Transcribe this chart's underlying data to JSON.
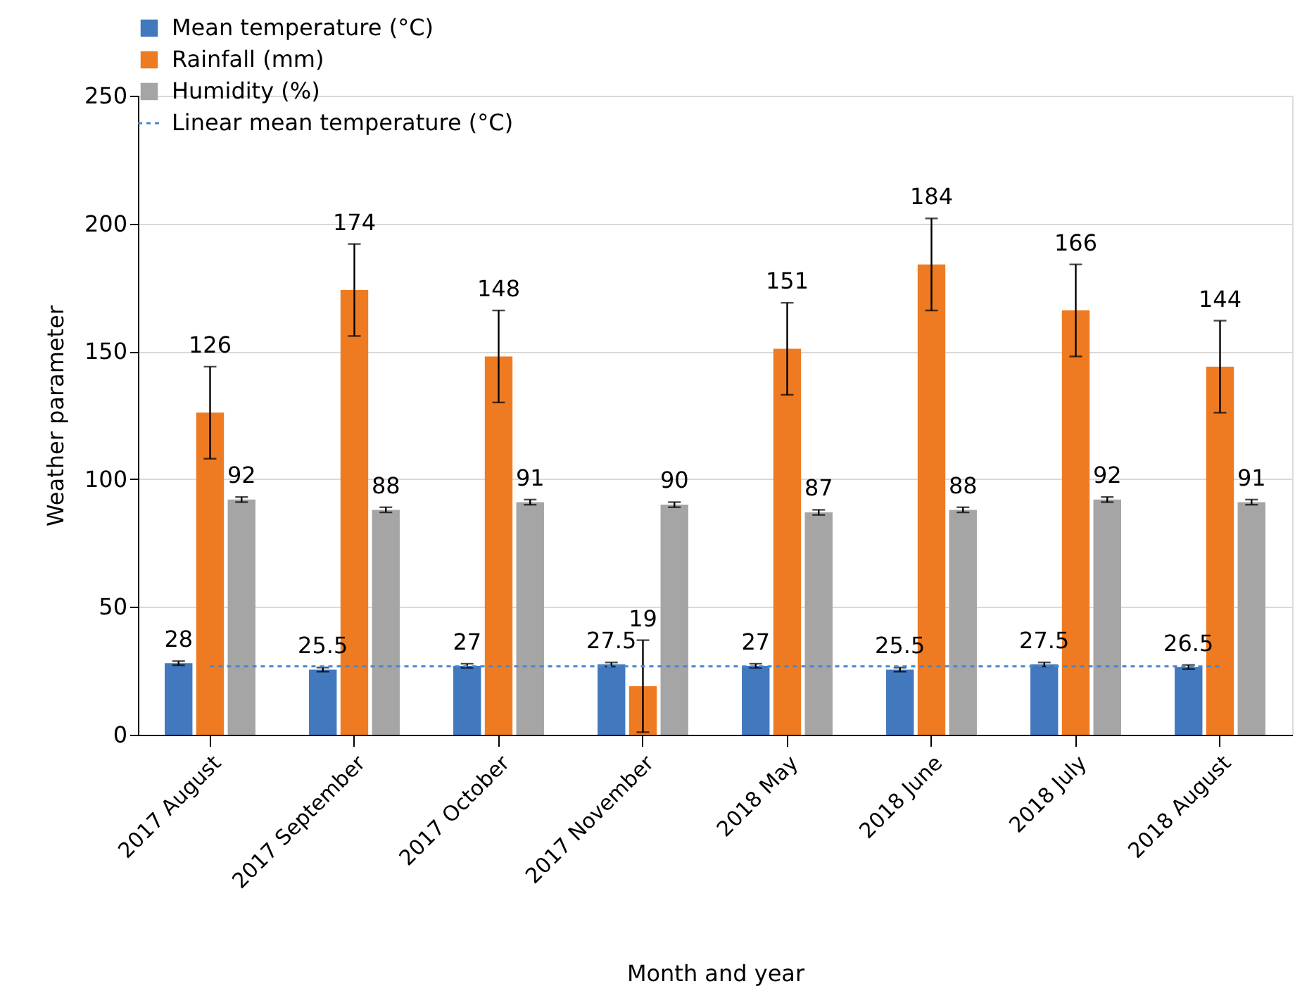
{
  "chart_data": {
    "type": "bar",
    "xlabel": "Month and year",
    "ylabel": "Weather parameter",
    "categories": [
      "2017 August",
      "2017 September",
      "2017 October",
      "2017 November",
      "2018 May",
      "2018 June",
      "2018 July",
      "2018 August"
    ],
    "series": [
      {
        "name": "Mean temperature (°C)",
        "color": "#4178be",
        "values": [
          28,
          25.5,
          27,
          27.5,
          27,
          25.5,
          27.5,
          26.5
        ],
        "errors": [
          0.8,
          0.8,
          0.8,
          0.8,
          0.8,
          0.8,
          0.8,
          0.8
        ],
        "value_labels": [
          "28",
          "25.5",
          "27",
          "27.5",
          "27",
          "25.5",
          "27.5",
          "26.5"
        ]
      },
      {
        "name": "Rainfall (mm)",
        "color": "#ee7b22",
        "values": [
          126,
          174,
          148,
          19,
          151,
          184,
          166,
          144
        ],
        "errors": [
          18,
          18,
          18,
          18,
          18,
          18,
          18,
          18
        ],
        "value_labels": [
          "126",
          "174",
          "148",
          "19",
          "151",
          "184",
          "166",
          "144"
        ]
      },
      {
        "name": "Humidity (%)",
        "color": "#a5a5a5",
        "values": [
          92,
          88,
          91,
          90,
          87,
          88,
          92,
          91
        ],
        "errors": [
          1,
          1,
          1,
          1,
          1,
          1,
          1,
          1
        ],
        "value_labels": [
          "92",
          "88",
          "91",
          "90",
          "87",
          "88",
          "92",
          "91"
        ]
      },
      {
        "name": "Linear mean temperature (°C)",
        "type": "line",
        "line_style": "dashed",
        "color": "#4a86d0",
        "x": [
          "2017 August",
          "2017 September",
          "2017 October",
          "2017 November",
          "2018 May",
          "2018 June",
          "2018 July",
          "2018 August"
        ],
        "values": [
          26.8,
          26.8,
          26.8,
          26.8,
          26.8,
          26.8,
          26.8,
          26.8
        ]
      }
    ],
    "ylim": [
      0,
      250
    ],
    "yticks": [
      0,
      50,
      100,
      150,
      200,
      250
    ],
    "grid": "y",
    "legend": "top left"
  }
}
